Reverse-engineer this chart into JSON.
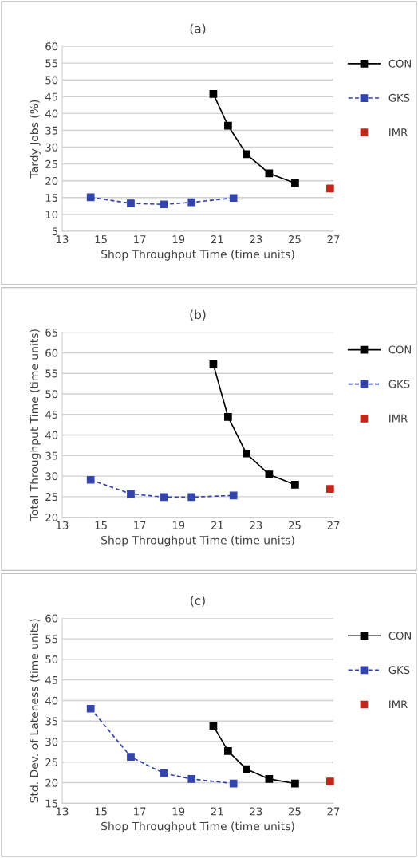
{
  "chart_data": [
    {
      "type": "line",
      "title": "(a)",
      "xlabel": "Shop Throughput Time (time units)",
      "ylabel": "Tardy Jobs (%)",
      "xlim": [
        13,
        27
      ],
      "xticks": [
        13,
        15,
        17,
        19,
        21,
        23,
        25,
        27
      ],
      "ylim": [
        5,
        60
      ],
      "yticks": [
        5,
        10,
        15,
        20,
        25,
        30,
        35,
        40,
        45,
        50,
        55,
        60
      ],
      "grid": "y",
      "legend": "right",
      "marker": "square",
      "series": [
        {
          "name": "CON",
          "color": "#000000",
          "line_style": "solid",
          "x": [
            20.8,
            21.56,
            22.51,
            23.68,
            25.02
          ],
          "values": [
            45.8,
            36.4,
            27.9,
            22.2,
            19.3
          ]
        },
        {
          "name": "GKS",
          "color": "#3344aa",
          "line_style": "dashed",
          "x": [
            14.47,
            16.54,
            18.24,
            19.68,
            21.84
          ],
          "values": [
            15.1,
            13.3,
            13.0,
            13.6,
            14.9
          ]
        },
        {
          "name": "IMR",
          "type": "scatter",
          "color": "#c0281e",
          "x": [
            26.83
          ],
          "values": [
            17.7
          ]
        }
      ]
    },
    {
      "type": "line",
      "title": "(b)",
      "xlabel": "Shop Throughput Time (time units)",
      "ylabel": "Total Throughput Time (time units)",
      "xlim": [
        13,
        27
      ],
      "xticks": [
        13,
        15,
        17,
        19,
        21,
        23,
        25,
        27
      ],
      "ylim": [
        20,
        65
      ],
      "yticks": [
        20,
        25,
        30,
        35,
        40,
        45,
        50,
        55,
        60,
        65
      ],
      "grid": "y",
      "legend": "right",
      "marker": "square",
      "series": [
        {
          "name": "CON",
          "color": "#000000",
          "line_style": "solid",
          "x": [
            20.8,
            21.56,
            22.51,
            23.68,
            25.02
          ],
          "values": [
            57.2,
            44.4,
            35.5,
            30.4,
            27.9
          ]
        },
        {
          "name": "GKS",
          "color": "#3344aa",
          "line_style": "dashed",
          "x": [
            14.47,
            16.54,
            18.24,
            19.68,
            21.84
          ],
          "values": [
            29.1,
            25.7,
            24.9,
            24.9,
            25.3
          ]
        },
        {
          "name": "IMR",
          "type": "scatter",
          "color": "#c0281e",
          "x": [
            26.83
          ],
          "values": [
            26.9
          ]
        }
      ]
    },
    {
      "type": "line",
      "title": "(c)",
      "xlabel": "Shop Throughput Time (time units)",
      "ylabel": "Std. Dev. of Lateness (time units)",
      "xlim": [
        13,
        27
      ],
      "xticks": [
        13,
        15,
        17,
        19,
        21,
        23,
        25,
        27
      ],
      "ylim": [
        15,
        60
      ],
      "yticks": [
        15,
        20,
        25,
        30,
        35,
        40,
        45,
        50,
        55,
        60
      ],
      "grid": "y",
      "legend": "right",
      "marker": "square",
      "series": [
        {
          "name": "CON",
          "color": "#000000",
          "line_style": "solid",
          "x": [
            20.8,
            21.56,
            22.51,
            23.68,
            25.02
          ],
          "values": [
            33.8,
            27.7,
            23.3,
            20.9,
            19.8
          ]
        },
        {
          "name": "GKS",
          "color": "#3344aa",
          "line_style": "dashed",
          "x": [
            14.47,
            16.54,
            18.24,
            19.68,
            21.84
          ],
          "values": [
            38.0,
            26.3,
            22.3,
            20.9,
            19.8
          ]
        },
        {
          "name": "IMR",
          "type": "scatter",
          "color": "#c0281e",
          "x": [
            26.83
          ],
          "values": [
            20.3
          ]
        }
      ]
    }
  ]
}
